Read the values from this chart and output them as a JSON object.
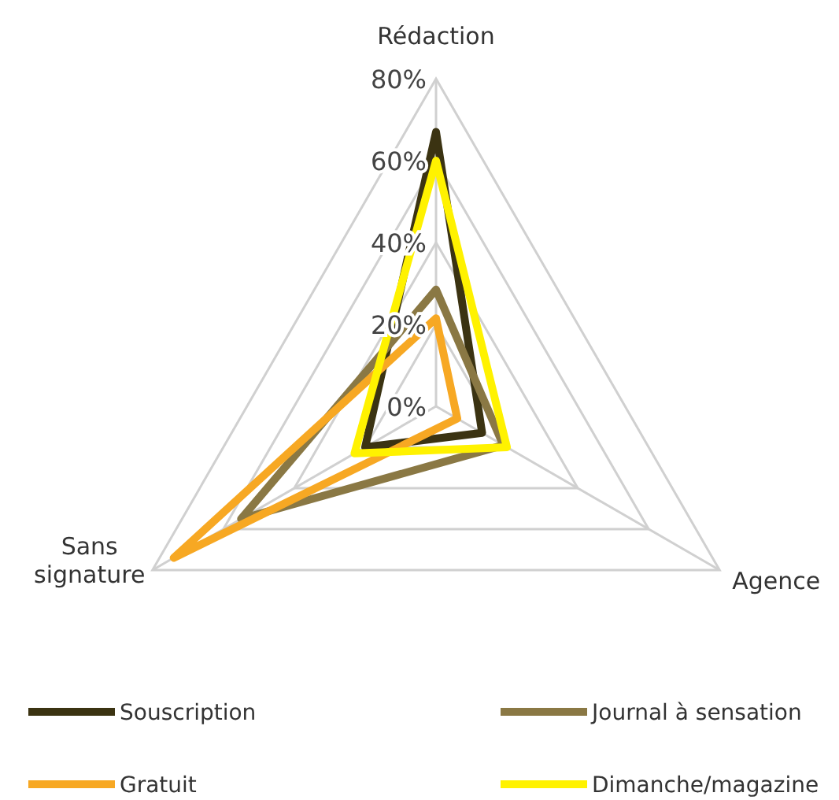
{
  "chart_data": {
    "type": "radar",
    "categories": [
      "Rédaction",
      "Agence",
      "Sans signature"
    ],
    "ylim": [
      0,
      80
    ],
    "yticks": [
      {
        "value": 0,
        "label": "0%"
      },
      {
        "value": 20,
        "label": "20%"
      },
      {
        "value": 40,
        "label": "40%"
      },
      {
        "value": 60,
        "label": "60%"
      },
      {
        "value": 80,
        "label": "80%"
      }
    ],
    "grid": true,
    "legend": "bottom",
    "marker": "none",
    "series": [
      {
        "name": "Souscription",
        "color": "#3b3312",
        "values": [
          67,
          13,
          20
        ]
      },
      {
        "name": "Journal à sensation",
        "color": "#8a7844",
        "values": [
          28.5,
          19,
          55
        ]
      },
      {
        "name": "Gratuit",
        "color": "#f7a823",
        "values": [
          21.5,
          6,
          74
        ]
      },
      {
        "name": "Dimanche/magazine",
        "color": "#fff200",
        "values": [
          60,
          20,
          23
        ]
      }
    ]
  }
}
